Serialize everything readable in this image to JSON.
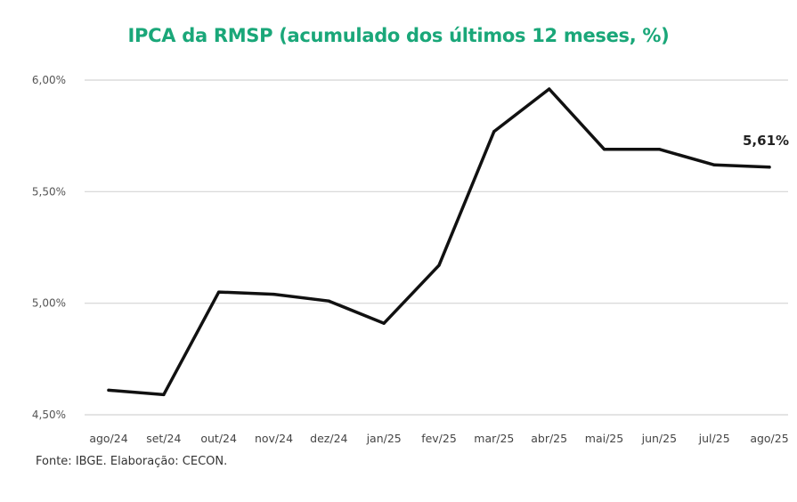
{
  "chart_data": {
    "type": "line",
    "title": "IPCA da RMSP (acumulado dos últimos 12 meses, %)",
    "categories": [
      "ago/24",
      "set/24",
      "out/24",
      "nov/24",
      "dez/24",
      "jan/25",
      "fev/25",
      "mar/25",
      "abr/25",
      "mai/25",
      "jun/25",
      "jul/25",
      "ago/25"
    ],
    "series": [
      {
        "values": [
          4.61,
          4.59,
          5.05,
          5.04,
          5.01,
          4.91,
          5.17,
          5.77,
          5.96,
          5.69,
          5.69,
          5.62,
          5.61
        ]
      }
    ],
    "ylim": [
      4.5,
      6.0
    ],
    "yticks": [
      4.5,
      5.0,
      5.5,
      6.0
    ],
    "ytick_labels": [
      "4,50%",
      "5,00%",
      "5,50%",
      "6,00%"
    ],
    "grid": true,
    "data_labels": [
      {
        "index": 12,
        "text": "5,61%"
      }
    ],
    "line_color": "#111111",
    "title_color": "#1aa779"
  },
  "footer": {
    "source": "Fonte: IBGE. Elaboração: CECON."
  }
}
